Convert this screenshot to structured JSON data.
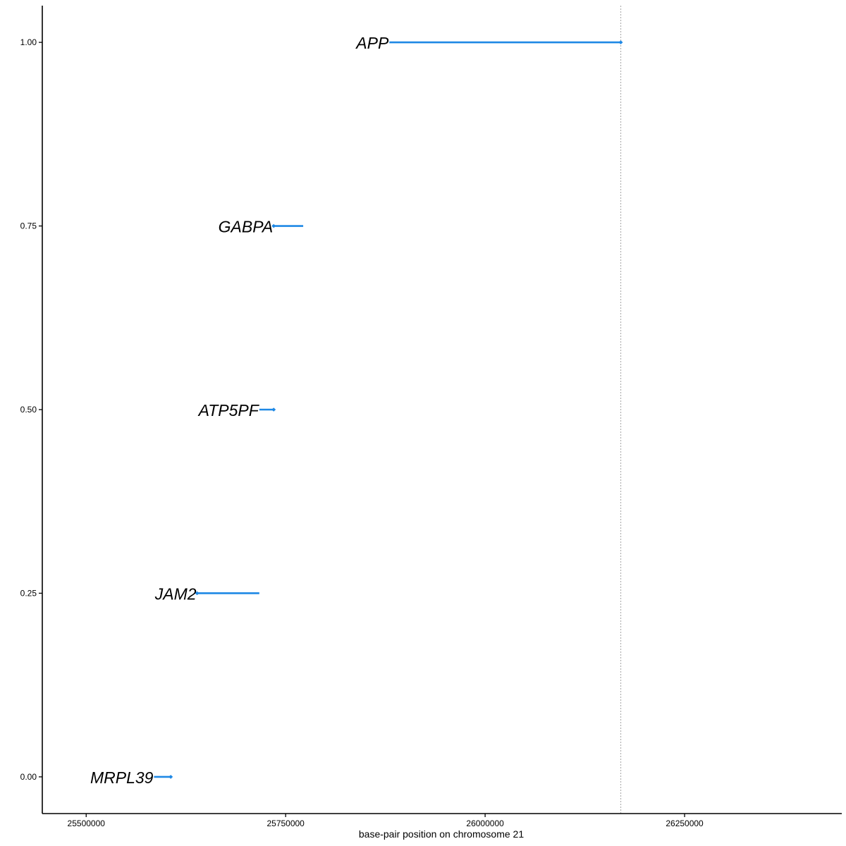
{
  "chart_data": {
    "type": "line",
    "title": "",
    "xlabel": "base-pair position on chromosome 21",
    "ylabel": "",
    "xlim": [
      25445000,
      26447000
    ],
    "ylim": [
      -0.05,
      1.05
    ],
    "x_ticks": [
      25500000,
      25750000,
      26000000,
      26250000
    ],
    "x_tick_labels": [
      "25500000",
      "25750000",
      "26000000",
      "26250000"
    ],
    "y_ticks": [
      0,
      0.25,
      0.5,
      0.75,
      1
    ],
    "y_tick_labels": [
      "0.00",
      "0.25",
      "0.50",
      "0.75",
      "1.00"
    ],
    "vline_x": 26170000,
    "grid": false,
    "legend": "none",
    "segment_color": "#1E88E5",
    "series": [
      {
        "name": "MRPL39",
        "start": 25585000,
        "end": 25606000,
        "y": 0.0,
        "arrow_at": "end"
      },
      {
        "name": "JAM2",
        "start": 25639000,
        "end": 25717000,
        "y": 0.25,
        "arrow_at": "start"
      },
      {
        "name": "ATP5PF",
        "start": 25717000,
        "end": 25735000,
        "y": 0.5,
        "arrow_at": "end"
      },
      {
        "name": "GABPA",
        "start": 25735000,
        "end": 25772000,
        "y": 0.75,
        "arrow_at": "start"
      },
      {
        "name": "APP",
        "start": 25880000,
        "end": 26170000,
        "y": 1.0,
        "arrow_at": "end"
      }
    ]
  }
}
